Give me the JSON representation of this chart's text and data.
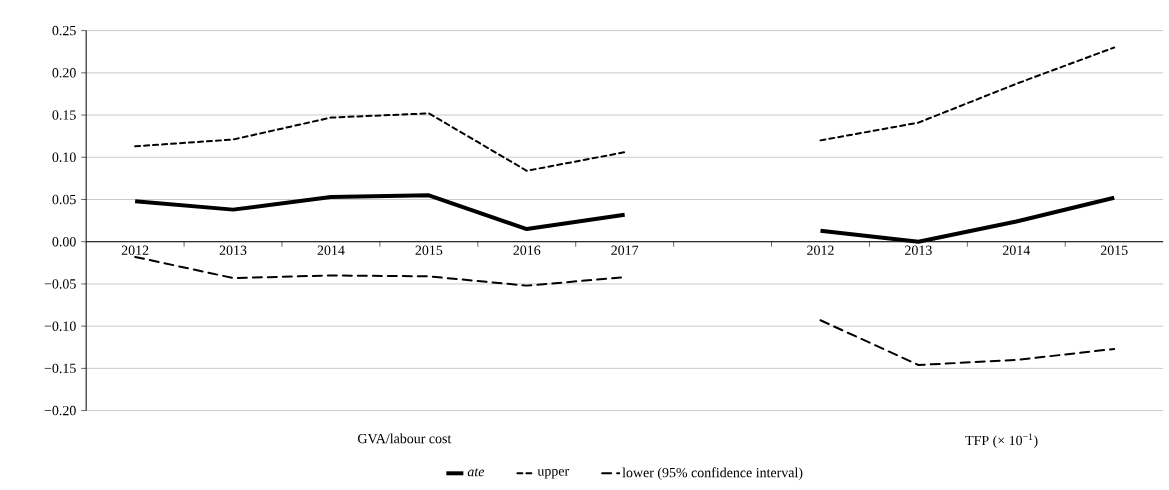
{
  "chart_data": {
    "type": "line",
    "categories": [
      "2012",
      "2013",
      "2014",
      "2015",
      "2016",
      "2017",
      null,
      "2012",
      "2013",
      "2014",
      "2015"
    ],
    "series": [
      {
        "name": "*ate*",
        "color": "#000000",
        "line_style": "solid",
        "values": [
          0.048,
          0.038,
          0.053,
          0.055,
          0.015,
          0.032,
          null,
          0.013,
          0.0,
          0.024,
          0.052
        ]
      },
      {
        "name": "upper",
        "color": "#000000",
        "line_style": "dashed",
        "values": [
          0.113,
          0.121,
          0.147,
          0.152,
          0.084,
          0.106,
          null,
          0.12,
          0.141,
          0.187,
          0.23
        ]
      },
      {
        "name": "lower (95% confidence interval)",
        "color": "#000000",
        "line_style": "dashed",
        "values": [
          -0.018,
          -0.043,
          -0.04,
          -0.041,
          -0.052,
          -0.042,
          null,
          -0.093,
          -0.146,
          -0.14,
          -0.127
        ]
      }
    ],
    "ylim": [
      -0.2,
      0.25
    ],
    "yticks": [
      {
        "value": -0.2,
        "label": "−0.20"
      },
      {
        "value": -0.15,
        "label": "−0.15"
      },
      {
        "value": -0.1,
        "label": "−0.10"
      },
      {
        "value": -0.05,
        "label": "−0.05"
      },
      {
        "value": 0.0,
        "label": "0.00"
      },
      {
        "value": 0.05,
        "label": "0.05"
      },
      {
        "value": 0.1,
        "label": "0.10"
      },
      {
        "value": 0.15,
        "label": "0.15"
      },
      {
        "value": 0.2,
        "label": "0.20"
      },
      {
        "value": 0.25,
        "label": "0.25"
      }
    ],
    "grid": "y",
    "legend": "bottom",
    "marker": "none",
    "annotations": [
      "GVA/labour cost",
      "TFP (× 10$^{−1}$)"
    ]
  }
}
